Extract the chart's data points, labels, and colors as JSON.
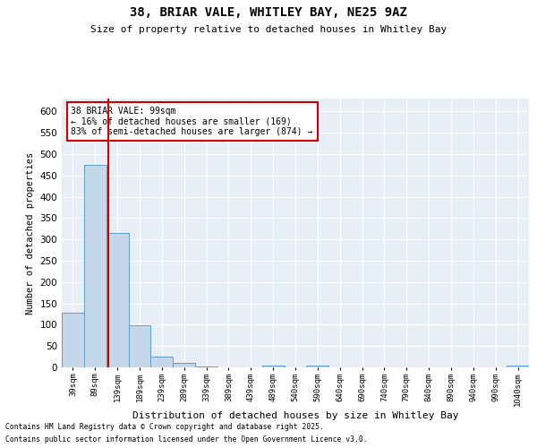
{
  "title1": "38, BRIAR VALE, WHITLEY BAY, NE25 9AZ",
  "title2": "Size of property relative to detached houses in Whitley Bay",
  "xlabel": "Distribution of detached houses by size in Whitley Bay",
  "ylabel": "Number of detached properties",
  "footnote1": "Contains HM Land Registry data © Crown copyright and database right 2025.",
  "footnote2": "Contains public sector information licensed under the Open Government Licence v3.0.",
  "annotation_title": "38 BRIAR VALE: 99sqm",
  "annotation_line1": "← 16% of detached houses are smaller (169)",
  "annotation_line2": "83% of semi-detached houses are larger (874) →",
  "bar_color": "#c5d8ea",
  "bar_edge_color": "#5a9ec9",
  "vline_color": "#cc0000",
  "vline_x": 1.6,
  "annotation_box_color": "#cc0000",
  "background_color": "#e8eef5",
  "categories": [
    "39sqm",
    "89sqm",
    "139sqm",
    "189sqm",
    "239sqm",
    "289sqm",
    "339sqm",
    "389sqm",
    "439sqm",
    "489sqm",
    "540sqm",
    "590sqm",
    "640sqm",
    "690sqm",
    "740sqm",
    "790sqm",
    "840sqm",
    "890sqm",
    "940sqm",
    "990sqm",
    "1040sqm"
  ],
  "values": [
    128,
    475,
    315,
    98,
    25,
    10,
    3,
    0,
    0,
    5,
    0,
    4,
    0,
    1,
    0,
    0,
    0,
    0,
    0,
    0,
    5
  ],
  "ylim": [
    0,
    630
  ],
  "yticks": [
    0,
    50,
    100,
    150,
    200,
    250,
    300,
    350,
    400,
    450,
    500,
    550,
    600
  ]
}
